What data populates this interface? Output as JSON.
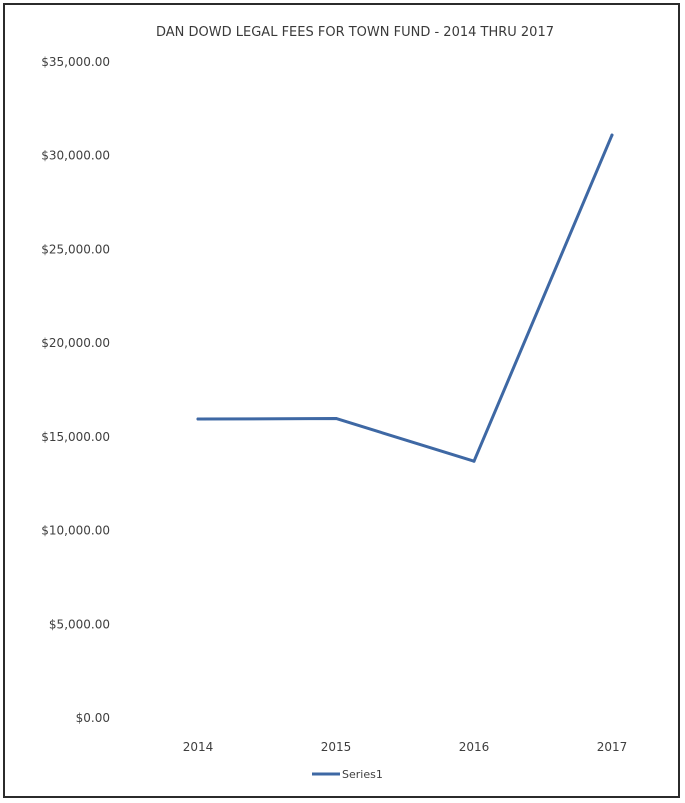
{
  "chart_data": {
    "type": "line",
    "title": "DAN DOWD LEGAL FEES FOR TOWN FUND - 2014 THRU 2017",
    "xlabel": "",
    "ylabel": "",
    "categories": [
      "2014",
      "2015",
      "2016",
      "2017"
    ],
    "series": [
      {
        "name": "Series1",
        "values": [
          15950,
          15980,
          13700,
          31100
        ],
        "color": "#3e68a4"
      }
    ],
    "ylim": [
      0,
      35000
    ],
    "yticks": [
      0,
      5000,
      10000,
      15000,
      20000,
      25000,
      30000,
      35000
    ],
    "ytick_labels": [
      "$0.00",
      "$5,000.00",
      "$10,000.00",
      "$15,000.00",
      "$20,000.00",
      "$25,000.00",
      "$30,000.00",
      "$35,000.00"
    ],
    "grid": false,
    "legend": {
      "position": "bottom",
      "entries": [
        "Series1"
      ]
    }
  }
}
